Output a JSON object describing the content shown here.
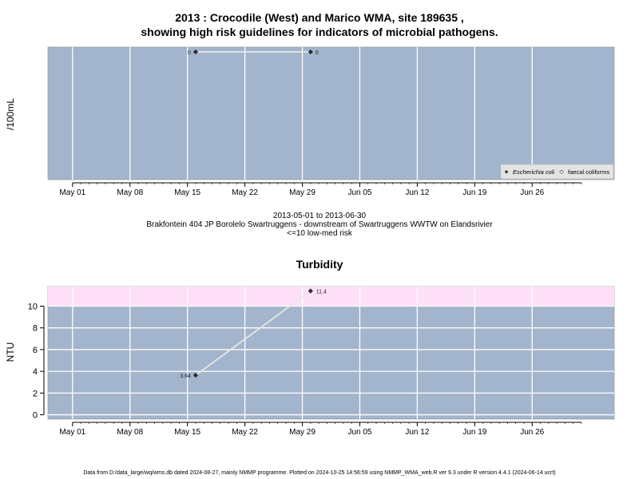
{
  "chart_data": [
    {
      "type": "line",
      "title_line1": "2013 : Crocodile (West) and Marico WMA, site 189635 ,",
      "title_line2": "showing high risk guidelines for indicators of microbial pathogens.",
      "ylabel": "/100mL",
      "x_ticks": [
        "May 01",
        "May 08",
        "May 15",
        "May 22",
        "May 29",
        "Jun 05",
        "Jun 12",
        "Jun 19",
        "Jun 26"
      ],
      "x_range": [
        "2013-04-28",
        "2013-07-06"
      ],
      "grid": true,
      "legend_placement": "bottom-right",
      "legend": [
        "Escherichia coli",
        "faecal coliforms"
      ],
      "series": [
        {
          "name": "Escherichia coli",
          "points": [
            {
              "x": "2013-05-16",
              "y": 0,
              "label": "0"
            },
            {
              "x": "2013-05-30",
              "y": 0,
              "label": "0"
            }
          ]
        }
      ],
      "caption_line1": "2013-05-01 to 2013-06-30",
      "caption_line2": "Brakfontein 404 JP Borolelo Swartruggens - downstream of Swartruggens WWTW on Elandsrivier",
      "caption_line3": "<=10 low-med risk"
    },
    {
      "type": "line",
      "title": "Turbidity",
      "ylabel": "NTU",
      "y_ticks": [
        "0",
        "2",
        "4",
        "6",
        "8",
        "10"
      ],
      "ylim": [
        -0.4,
        11.8
      ],
      "threshold": 10,
      "x_ticks": [
        "May 01",
        "May 08",
        "May 15",
        "May 22",
        "May 29",
        "Jun 05",
        "Jun 12",
        "Jun 19",
        "Jun 26"
      ],
      "x_range": [
        "2013-04-28",
        "2013-07-06"
      ],
      "grid": true,
      "points": [
        {
          "x": "2013-05-16",
          "y": 3.64,
          "label": "3.64"
        },
        {
          "x": "2013-05-30",
          "y": 11.4,
          "label": "11.4"
        }
      ]
    }
  ],
  "footer": "Data from D:/data_large/wq/wms.db dated 2024-08-27, mainly NMMP programme. Plotted on 2024-10-25 14:56:59 using NMMP_WMA_web.R ver 9.3 under R version 4.4.1 (2024-06-14 ucrt)",
  "colors": {
    "panel_bg": "#a3b5cc",
    "high_risk_band": "#fde0f7",
    "grid": "#ffffff",
    "line": "#e6e6e6",
    "marker": "#333333"
  }
}
